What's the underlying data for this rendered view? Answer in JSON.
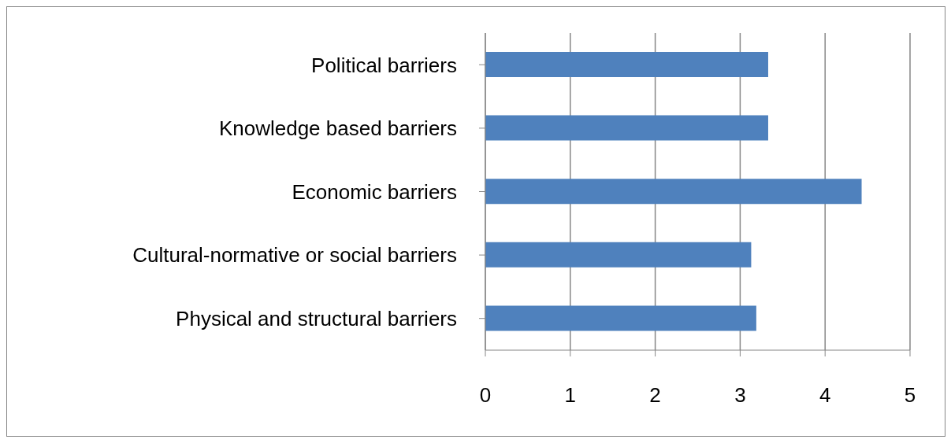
{
  "chart_data": {
    "type": "bar",
    "orientation": "horizontal",
    "categories": [
      "Political barriers",
      "Knowledge based barriers",
      "Economic barriers",
      "Cultural-normative or social barriers",
      "Physical and structural barriers"
    ],
    "values": [
      3.33,
      3.33,
      4.43,
      3.13,
      3.19
    ],
    "color": "#4f81bd",
    "xlim": [
      0,
      5
    ],
    "xticks": [
      0,
      1,
      2,
      3,
      4,
      5
    ],
    "grid": "x",
    "legend": false
  }
}
